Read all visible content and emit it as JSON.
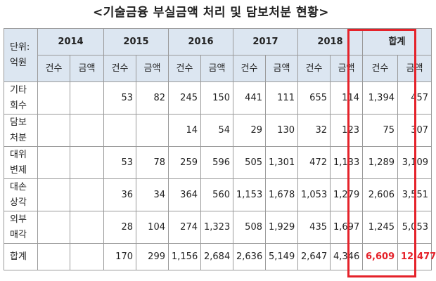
{
  "title": "<기술금융 부실금액 처리 및 담보처분 현황>",
  "corner_label": [
    "단위:",
    "억원"
  ],
  "years": [
    "2014",
    "2015",
    "2016",
    "2017",
    "2018",
    "합계"
  ],
  "sub_headers": [
    "건수",
    "금액"
  ],
  "rows": [
    {
      "label": [
        "기타",
        "회수"
      ],
      "cells": [
        "",
        "",
        "53",
        "82",
        "245",
        "150",
        "441",
        "111",
        "655",
        "114",
        "1,394",
        "457"
      ]
    },
    {
      "label": [
        "담보",
        "처분"
      ],
      "cells": [
        "",
        "",
        "",
        "",
        "14",
        "54",
        "29",
        "130",
        "32",
        "123",
        "75",
        "307"
      ]
    },
    {
      "label": [
        "대위",
        "변제"
      ],
      "cells": [
        "",
        "",
        "53",
        "78",
        "259",
        "596",
        "505",
        "1,301",
        "472",
        "1,133",
        "1,289",
        "3,109"
      ]
    },
    {
      "label": [
        "대손",
        "상각"
      ],
      "cells": [
        "",
        "",
        "36",
        "34",
        "364",
        "560",
        "1,153",
        "1,678",
        "1,053",
        "1,279",
        "2,606",
        "3,551"
      ]
    },
    {
      "label": [
        "외부",
        "매각"
      ],
      "cells": [
        "",
        "",
        "28",
        "104",
        "274",
        "1,323",
        "508",
        "1,929",
        "435",
        "1,697",
        "1,245",
        "5,053"
      ]
    },
    {
      "label": [
        "합계"
      ],
      "cells": [
        "",
        "",
        "170",
        "299",
        "1,156",
        "2,684",
        "2,636",
        "5,149",
        "2,647",
        "4,346",
        "6,609",
        "12,477"
      ]
    }
  ],
  "highlight_color": "#e5222a",
  "header_bg": "#dce6f1"
}
